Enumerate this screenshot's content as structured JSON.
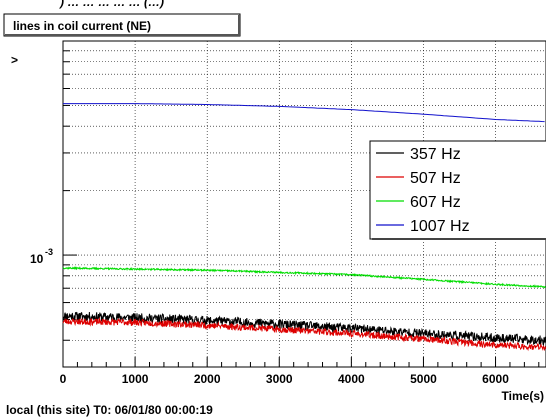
{
  "page": {
    "header_fragment": ") … … … … … (…)",
    "footer": "local (this site) T0: 06/01/80 00:00:19"
  },
  "chart_data": {
    "type": "line",
    "title": "lines in coil current (NE)",
    "xlabel": "Time(s)",
    "ylabel": ">",
    "xlim": [
      0,
      6700
    ],
    "ylim": [
      0.0003,
      0.01
    ],
    "yscale": "log",
    "grid": true,
    "x_ticks": [
      0,
      1000,
      2000,
      3000,
      4000,
      5000,
      6000
    ],
    "y_tick_label": {
      "base": "10",
      "exponent": "-3",
      "value": 0.001
    },
    "legend": {
      "placement": "right"
    },
    "series": [
      {
        "name": "357 Hz",
        "color": "#000000",
        "noise": 0.05,
        "seed": 11,
        "x": [
          0,
          1000,
          2000,
          3000,
          4000,
          5000,
          6000,
          6700
        ],
        "y": [
          0.00052,
          0.00051,
          0.000495,
          0.000475,
          0.000455,
          0.00043,
          0.00041,
          0.0004
        ]
      },
      {
        "name": "507 Hz",
        "color": "#dd0000",
        "noise": 0.035,
        "seed": 23,
        "x": [
          0,
          1000,
          2000,
          3000,
          4000,
          5000,
          6000,
          6700
        ],
        "y": [
          0.00049,
          0.000485,
          0.00047,
          0.00045,
          0.00043,
          0.000405,
          0.00038,
          0.00037
        ]
      },
      {
        "name": "607 Hz",
        "color": "#00dd00",
        "noise": 0.008,
        "seed": 37,
        "x": [
          0,
          1000,
          2000,
          3000,
          4000,
          5000,
          6000,
          6700
        ],
        "y": [
          0.00087,
          0.00086,
          0.00085,
          0.00083,
          0.00081,
          0.00077,
          0.00073,
          0.00071
        ]
      },
      {
        "name": "1007 Hz",
        "color": "#1010cc",
        "noise": 0.0,
        "seed": 51,
        "x": [
          0,
          1000,
          2000,
          3000,
          4000,
          5000,
          6000,
          6700
        ],
        "y": [
          0.0051,
          0.0051,
          0.00505,
          0.00495,
          0.00478,
          0.00455,
          0.0043,
          0.0042
        ]
      }
    ]
  }
}
